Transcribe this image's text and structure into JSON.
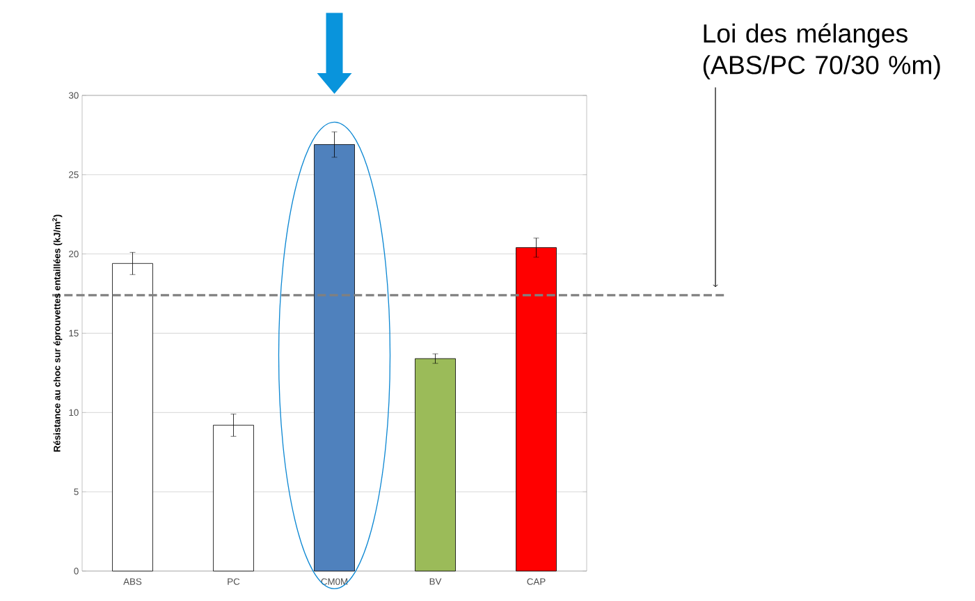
{
  "chart_data": {
    "type": "bar",
    "ylabel": "Résistance au choc sur éprouvettes entaillées (kJ/m$^{2}$)",
    "categories": [
      "ABS",
      "PC",
      "CM0M",
      "BV",
      "CAP"
    ],
    "values": [
      19.4,
      9.2,
      26.9,
      13.4,
      20.4
    ],
    "errors": [
      0.7,
      0.7,
      0.8,
      0.3,
      0.6
    ],
    "colors": [
      "#ffffff",
      "#ffffff",
      "#4f81bd",
      "#9bbb59",
      "#ff0000"
    ],
    "ylim": [
      0,
      30
    ],
    "yticks": [
      0,
      5,
      10,
      15,
      20,
      25,
      30
    ],
    "grid": "y",
    "annotations": [
      "Loi des mélanges (ABS/PC 70/30 %m)"
    ],
    "ref_lines": [
      {
        "axis": "y",
        "value": 17.4,
        "color": "#808080",
        "line_style": "dashed"
      }
    ]
  }
}
